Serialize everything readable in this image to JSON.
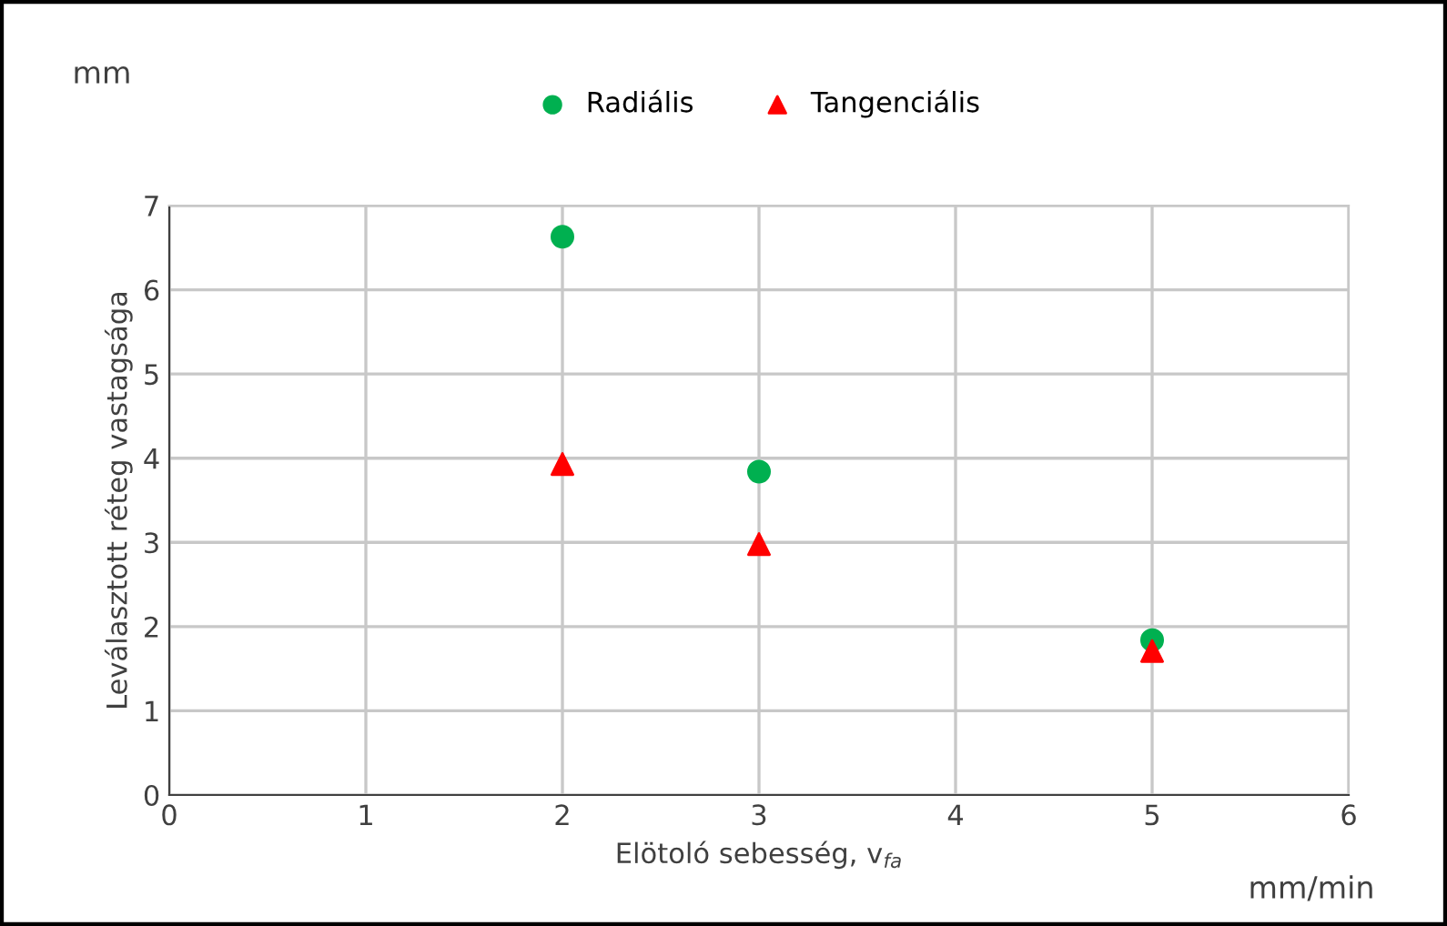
{
  "chart_data": {
    "type": "scatter",
    "xlabel": "Elötoló sebesség, v$_{fa}$",
    "ylabel": "Leválasztott réteg vastagsága",
    "annotations": [
      "mm",
      "mm/min"
    ],
    "series": [
      {
        "name": "Radiális",
        "color": "#00b050",
        "marker": "circle",
        "x": [
          2,
          3,
          5
        ],
        "values": [
          6.63,
          3.84,
          1.84
        ]
      },
      {
        "name": "Tangenciális",
        "color": "#ff0000",
        "marker": "triangle",
        "x": [
          2,
          3,
          5
        ],
        "values": [
          3.93,
          2.98,
          1.71
        ]
      }
    ],
    "xlim": [
      0,
      6
    ],
    "xticks": [
      0,
      1,
      2,
      3,
      4,
      5,
      6
    ],
    "ylim": [
      0,
      7
    ],
    "yticks": [
      0,
      1,
      2,
      3,
      4,
      5,
      6,
      7
    ],
    "grid": true,
    "legend": "top"
  }
}
